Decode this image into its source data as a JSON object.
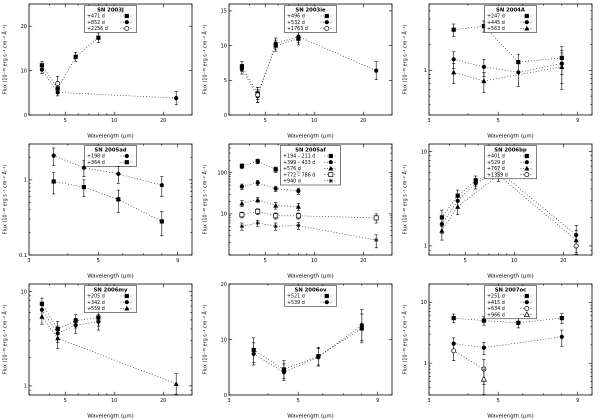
{
  "figure": {
    "description": "Grid of nine mid-infrared supernova spectral energy distribution panels",
    "xlabel": "Wavelength (μm)",
    "ylabel": "Flux (10⁻¹⁸ erg s⁻¹ cm⁻² Å⁻¹)"
  },
  "chart_data": [
    {
      "type": "scatter",
      "title": "SN 2003J",
      "xlabel": "Wavelength (μm)",
      "ylabel": "Flux (10⁻¹⁸ erg s⁻¹ cm⁻² Å⁻¹)",
      "xscale": "log",
      "yscale": "linear",
      "xlim": [
        3,
        30
      ],
      "ylim": [
        0,
        25
      ],
      "xticks": [
        5,
        10,
        20
      ],
      "yticks": [
        0,
        10,
        20
      ],
      "series": [
        {
          "name": "+471 d",
          "marker": "filled-square",
          "x": [
            3.6,
            4.5,
            5.8,
            8.0
          ],
          "y": [
            11.2,
            6.0,
            13.1,
            17.4
          ],
          "yerr": [
            0.9,
            0.8,
            1.0,
            1.1
          ]
        },
        {
          "name": "+852 d",
          "marker": "filled-circle",
          "x": [
            3.6,
            4.5,
            24.0
          ],
          "y": [
            10.2,
            5.1,
            3.8
          ],
          "yerr": [
            0.9,
            0.8,
            1.5
          ]
        },
        {
          "name": "+2256 d",
          "marker": "open-circle",
          "x": [
            4.5
          ],
          "y": [
            7.1
          ],
          "yerr": [
            1.6
          ]
        }
      ]
    },
    {
      "type": "scatter",
      "title": "SN 2003ie",
      "xlabel": "Wavelength (μm)",
      "ylabel": "Flux (10⁻¹⁸ erg s⁻¹ cm⁻² Å⁻¹)",
      "xscale": "log",
      "yscale": "linear",
      "xlim": [
        3,
        30
      ],
      "ylim": [
        0,
        16
      ],
      "xticks": [
        5,
        10,
        20
      ],
      "yticks": [
        0,
        5,
        10,
        15
      ],
      "series": [
        {
          "name": "+496 d",
          "marker": "filled-square",
          "x": [
            3.6,
            4.5,
            5.8,
            8.0
          ],
          "y": [
            7.0,
            3.1,
            10.0,
            11.0
          ],
          "yerr": [
            0.7,
            0.9,
            0.8,
            0.9
          ]
        },
        {
          "name": "+532 d",
          "marker": "filled-circle",
          "x": [
            3.6,
            4.5,
            5.8,
            8.0,
            24.0
          ],
          "y": [
            6.6,
            2.7,
            10.3,
            11.3,
            6.4
          ],
          "yerr": [
            0.7,
            0.9,
            0.8,
            0.9,
            1.3
          ]
        },
        {
          "name": "+1763 d",
          "marker": "open-circle",
          "x": [
            4.5
          ],
          "y": [
            2.9
          ],
          "yerr": [
            1.1
          ]
        }
      ]
    },
    {
      "type": "scatter",
      "title": "SN 2004A",
      "xlabel": "Wavelength (μm)",
      "ylabel": "Flux (10⁻¹⁸ erg s⁻¹ cm⁻² Å⁻¹)",
      "xscale": "log",
      "yscale": "log",
      "xlim": [
        3,
        10
      ],
      "ylim": [
        0.3,
        6
      ],
      "xticks": [
        3,
        5,
        9
      ],
      "yticks": [
        1
      ],
      "series": [
        {
          "name": "+247 d",
          "marker": "filled-square",
          "x": [
            3.6,
            4.5,
            5.8,
            8.0
          ],
          "y": [
            3.0,
            3.3,
            1.25,
            1.4
          ],
          "yerr": [
            0.5,
            0.5,
            0.3,
            0.5
          ]
        },
        {
          "name": "+445 d",
          "marker": "filled-circle",
          "x": [
            3.6,
            4.5,
            5.8,
            8.0
          ],
          "y": [
            1.35,
            1.1,
            0.95,
            1.2
          ],
          "yerr": [
            0.3,
            0.25,
            0.3,
            0.5
          ]
        },
        {
          "name": "+563 d",
          "marker": "filled-triangle",
          "x": [
            3.6,
            4.5,
            8.0
          ],
          "y": [
            0.95,
            0.75,
            1.1
          ],
          "yerr": [
            0.25,
            0.2,
            0.5
          ]
        }
      ]
    },
    {
      "type": "scatter",
      "title": "SN 2005ad",
      "xlabel": "Wavelength (μm)",
      "ylabel": "Flux (10⁻¹⁸ erg s⁻¹ cm⁻² Å⁻¹)",
      "xscale": "log",
      "yscale": "log",
      "xlim": [
        3,
        10
      ],
      "ylim": [
        0.1,
        3
      ],
      "xticks": [
        3,
        5,
        9
      ],
      "yticks": [
        0.1,
        1
      ],
      "series": [
        {
          "name": "+198 d",
          "marker": "filled-circle",
          "x": [
            3.6,
            4.5,
            5.8,
            8.0
          ],
          "y": [
            2.1,
            1.45,
            1.2,
            0.85
          ],
          "yerr": [
            0.55,
            0.35,
            0.3,
            0.25
          ]
        },
        {
          "name": "+364 d",
          "marker": "filled-square",
          "x": [
            3.6,
            4.5,
            5.8,
            8.0
          ],
          "y": [
            0.95,
            0.8,
            0.55,
            0.28
          ],
          "yerr": [
            0.3,
            0.2,
            0.18,
            0.1
          ]
        }
      ]
    },
    {
      "type": "scatter",
      "title": "SN 2005af",
      "xlabel": "Wavelength (μm)",
      "ylabel": "Flux (10⁻¹⁸ erg s⁻¹ cm⁻² Å⁻¹)",
      "xscale": "log",
      "yscale": "log",
      "xlim": [
        3,
        30
      ],
      "ylim": [
        1,
        500
      ],
      "xticks": [
        5,
        10,
        20
      ],
      "yticks": [
        10,
        100
      ],
      "series": [
        {
          "name": "+194 – 211 d",
          "marker": "filled-square",
          "x": [
            3.6,
            4.5,
            5.8,
            8.0
          ],
          "y": [
            145,
            190,
            120,
            105
          ],
          "yerr": [
            20,
            25,
            18,
            16
          ]
        },
        {
          "name": "+399 – 433 d",
          "marker": "filled-circle",
          "x": [
            3.6,
            4.5,
            5.8,
            8.0
          ],
          "y": [
            46,
            57,
            41,
            36
          ],
          "yerr": [
            7,
            8,
            6,
            6
          ]
        },
        {
          "name": "+576 d",
          "marker": "filled-triangle",
          "x": [
            3.6,
            4.5,
            5.8,
            8.0
          ],
          "y": [
            18,
            22,
            16,
            15
          ],
          "yerr": [
            3,
            3,
            3,
            3
          ]
        },
        {
          "name": "+772 – 786 d",
          "marker": "open-square",
          "x": [
            3.6,
            4.5,
            5.8,
            8.0,
            24.0
          ],
          "y": [
            9.5,
            11.5,
            9.0,
            9.0,
            8.0
          ],
          "yerr": [
            1.5,
            1.8,
            1.5,
            1.5,
            2.0
          ]
        },
        {
          "name": "+940 d",
          "marker": "star",
          "x": [
            3.6,
            4.5,
            5.8,
            8.0,
            24.0
          ],
          "y": [
            5.0,
            6.0,
            5.0,
            5.2,
            2.3
          ],
          "yerr": [
            1.0,
            1.0,
            1.0,
            1.0,
            0.8
          ]
        }
      ]
    },
    {
      "type": "scatter",
      "title": "SN 2006bp",
      "xlabel": "Wavelength (μm)",
      "ylabel": "Flux (10⁻¹⁸ erg s⁻¹ cm⁻² Å⁻¹)",
      "xscale": "log",
      "yscale": "log",
      "xlim": [
        3,
        30
      ],
      "ylim": [
        0.8,
        12
      ],
      "xticks": [
        5,
        10,
        20
      ],
      "yticks": [
        1,
        10
      ],
      "series": [
        {
          "name": "+401 d",
          "marker": "filled-square",
          "x": [
            3.6,
            4.5,
            5.8,
            8.0
          ],
          "y": [
            2.0,
            3.4,
            4.9,
            6.0
          ],
          "yerr": [
            0.4,
            0.5,
            0.6,
            0.8
          ]
        },
        {
          "name": "+529 d",
          "marker": "filled-circle",
          "x": [
            3.6,
            4.5,
            5.8,
            8.0,
            24.0
          ],
          "y": [
            1.7,
            3.0,
            4.6,
            6.2,
            1.3
          ],
          "yerr": [
            0.35,
            0.5,
            0.6,
            0.8,
            0.35
          ]
        },
        {
          "name": "+767 d",
          "marker": "filled-triangle",
          "x": [
            3.6,
            4.5,
            8.0,
            24.0
          ],
          "y": [
            1.45,
            2.6,
            5.6,
            1.15
          ],
          "yerr": [
            0.3,
            0.45,
            0.8,
            0.3
          ]
        },
        {
          "name": "+1359 d",
          "marker": "open-circle",
          "x": [
            24.0
          ],
          "y": [
            1.0
          ],
          "yerr": [
            0.3
          ]
        }
      ]
    },
    {
      "type": "scatter",
      "title": "SN 2006my",
      "xlabel": "Wavelength (μm)",
      "ylabel": "Flux (10⁻¹⁸ erg s⁻¹ cm⁻² Å⁻¹)",
      "xscale": "log",
      "yscale": "log",
      "xlim": [
        3,
        30
      ],
      "ylim": [
        0.8,
        12
      ],
      "xticks": [
        5,
        10,
        20
      ],
      "yticks": [
        1,
        10
      ],
      "series": [
        {
          "name": "+205 d",
          "marker": "filled-square",
          "x": [
            3.6,
            4.5,
            5.8,
            8.0
          ],
          "y": [
            7.4,
            4.0,
            4.9,
            5.3
          ],
          "yerr": [
            1.1,
            0.8,
            0.8,
            1.0
          ]
        },
        {
          "name": "+342 d",
          "marker": "filled-circle",
          "x": [
            3.6,
            4.5,
            5.8,
            8.0
          ],
          "y": [
            6.4,
            3.6,
            4.4,
            4.8
          ],
          "yerr": [
            1.0,
            0.7,
            0.8,
            0.9
          ]
        },
        {
          "name": "+559 d",
          "marker": "filled-triangle",
          "x": [
            3.6,
            4.5,
            24.0
          ],
          "y": [
            5.4,
            3.2,
            1.05
          ],
          "yerr": [
            0.9,
            0.7,
            0.3
          ]
        }
      ]
    },
    {
      "type": "scatter",
      "title": "SN 2006ov",
      "xlabel": "Wavelength (μm)",
      "ylabel": "Flux (10⁻¹⁸ erg s⁻¹ cm⁻² Å⁻¹)",
      "xscale": "log",
      "yscale": "linear",
      "xlim": [
        3,
        10
      ],
      "ylim": [
        0,
        20
      ],
      "xticks": [
        3,
        5,
        9
      ],
      "yticks": [
        0,
        10,
        20
      ],
      "series": [
        {
          "name": "+521 d",
          "marker": "filled-square",
          "x": [
            3.6,
            4.5,
            5.8,
            8.0
          ],
          "y": [
            8.1,
            4.6,
            7.0,
            12.0
          ],
          "yerr": [
            2.2,
            1.6,
            1.6,
            2.6
          ]
        },
        {
          "name": "+539 d",
          "marker": "filled-circle",
          "x": [
            3.6,
            4.5,
            5.8,
            8.0
          ],
          "y": [
            7.4,
            4.1,
            6.8,
            12.6
          ],
          "yerr": [
            2.0,
            1.5,
            1.6,
            2.8
          ]
        }
      ]
    },
    {
      "type": "scatter",
      "title": "SN 2007oc",
      "xlabel": "Wavelength (μm)",
      "ylabel": "Flux (10⁻¹⁸ erg s⁻¹ cm⁻² Å⁻¹)",
      "xscale": "log",
      "yscale": "log",
      "xlim": [
        3,
        10
      ],
      "ylim": [
        0.3,
        20
      ],
      "xticks": [
        3,
        5,
        9
      ],
      "yticks": [
        1,
        10
      ],
      "series": [
        {
          "name": "+251 d",
          "marker": "filled-square",
          "x": [
            3.6,
            4.5,
            5.8,
            8.0
          ],
          "y": [
            5.5,
            5.0,
            4.6,
            5.5
          ],
          "yerr": [
            0.9,
            0.8,
            0.8,
            1.0
          ]
        },
        {
          "name": "+415 d",
          "marker": "filled-circle",
          "x": [
            3.6,
            4.5,
            8.0
          ],
          "y": [
            2.1,
            1.8,
            2.7
          ],
          "yerr": [
            0.5,
            0.4,
            0.8
          ]
        },
        {
          "name": "+634 d",
          "marker": "open-circle",
          "x": [
            3.6,
            4.5
          ],
          "y": [
            1.6,
            0.8
          ],
          "yerr": [
            0.5,
            0.35
          ]
        },
        {
          "name": "+966 d",
          "marker": "open-triangle",
          "x": [
            4.5
          ],
          "y": [
            0.55
          ],
          "yerr": [
            0.25
          ]
        }
      ]
    }
  ]
}
